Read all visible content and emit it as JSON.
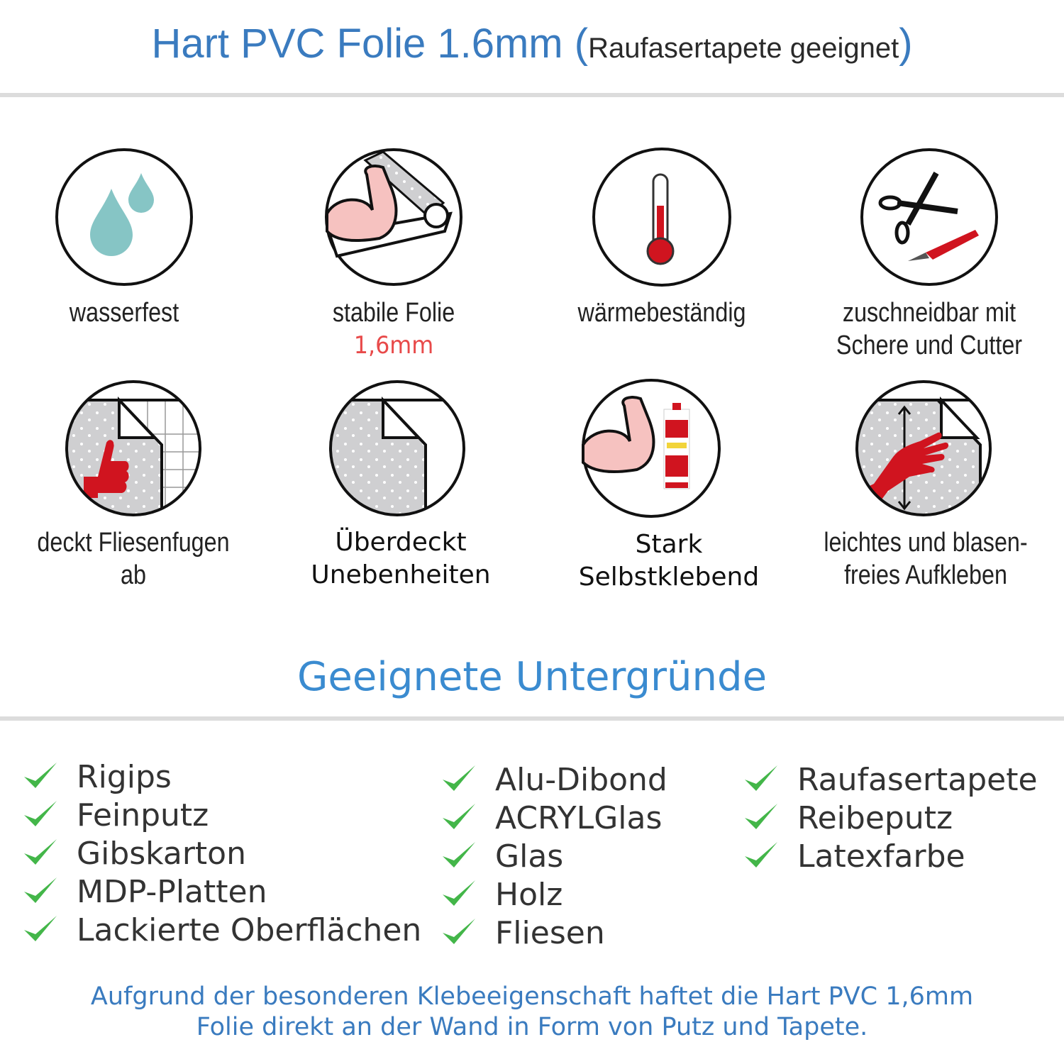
{
  "header": {
    "title": "Hart PVC Folie 1.6mm",
    "paren_open": "(",
    "subtitle": "Raufasertapete geeignet",
    "paren_close": ")"
  },
  "features": [
    {
      "icon": "water-drops-icon",
      "label": "wasserfest"
    },
    {
      "icon": "strong-arm-foil-icon",
      "label": "stabile Folie",
      "sub": "1,6mm"
    },
    {
      "icon": "thermometer-icon",
      "label": "wärmebeständig"
    },
    {
      "icon": "scissors-cutter-icon",
      "label": "zuschneidbar mit",
      "label2": "Schere und Cutter"
    },
    {
      "icon": "thumbs-up-tiles-icon",
      "label": "deckt Fliesenfugen ab"
    },
    {
      "icon": "foil-peel-icon",
      "label": "Überdeckt",
      "label2": "Unebenheiten"
    },
    {
      "icon": "strong-arm-glue-icon",
      "label": "Stark",
      "label2": "Selbstklebend"
    },
    {
      "icon": "hand-smoothing-icon",
      "label": "leichtes und blasen-",
      "label2": "freies Aufkleben"
    }
  ],
  "surfaces": {
    "title": "Geeignete Untergründe",
    "check_color": "#43b649",
    "columns": [
      [
        "Rigips",
        "Feinputz",
        "Gibskarton",
        "MDP-Platten",
        "Lackierte Oberflächen"
      ],
      [
        "Alu-Dibond",
        "ACRYLGlas",
        "Glas",
        "Holz",
        "Fliesen"
      ],
      [
        "Raufasertapete",
        "Reibeputz",
        "Latexfarbe"
      ]
    ]
  },
  "footer": {
    "line1": "Aufgrund der besonderen Klebeeigenschaft haftet die Hart PVC 1,6mm",
    "line2": "Folie direkt an der Wand in Form von Putz und Tapete."
  },
  "colors": {
    "accent": "#3a7bbf",
    "red": "#d0141f",
    "drop": "#86c5c5"
  }
}
